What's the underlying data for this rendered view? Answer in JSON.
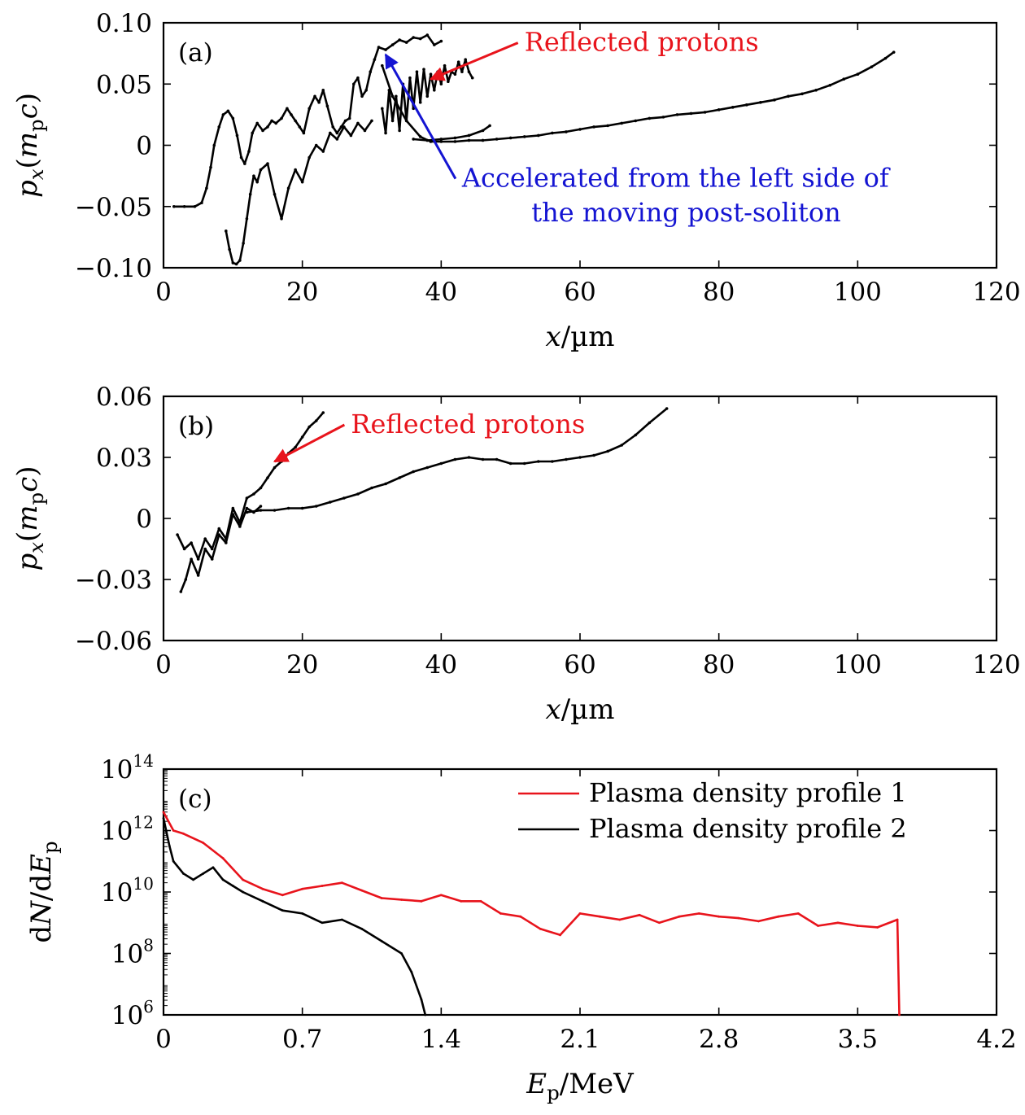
{
  "chart_data": [
    {
      "panel": "(a)",
      "type": "scatter",
      "title": "",
      "xlabel": "x/µm",
      "ylabel": "p_x(m_p c)",
      "xlim": [
        0,
        120
      ],
      "ylim": [
        -0.1,
        0.1
      ],
      "xticks": [
        0,
        20,
        40,
        60,
        80,
        100,
        120
      ],
      "xtick_labels": [
        "0",
        "20",
        "40",
        "60",
        "80",
        "100",
        "120"
      ],
      "yticks": [
        -0.1,
        -0.05,
        0,
        0.05,
        0.1
      ],
      "ytick_labels": [
        "−0.10",
        "−0.05",
        "0",
        "0.05",
        "0.10"
      ],
      "grid": false,
      "series": [
        {
          "color": "#000000",
          "x": [
            1.5,
            3,
            4.5,
            5.5,
            6.2,
            6.8,
            7.3,
            8,
            8.6,
            9.3,
            10,
            10.6,
            11.2,
            11.7,
            12.3,
            12.8,
            13.5,
            14.3,
            15,
            15.6,
            16.2,
            17,
            17.8,
            18.4,
            19,
            19.6,
            20.2,
            21,
            21.8,
            22.4,
            23,
            23.6,
            24.4,
            25,
            25.6,
            26.2,
            26.8,
            27.4,
            28,
            28.6,
            29.2,
            29.8,
            30.4,
            31,
            32,
            33,
            34,
            35,
            36,
            37,
            38,
            39,
            40
          ],
          "y": [
            -0.05,
            -0.05,
            -0.05,
            -0.047,
            -0.035,
            -0.018,
            0,
            0.015,
            0.025,
            0.028,
            0.022,
            0.008,
            -0.01,
            -0.015,
            -0.005,
            0.01,
            0.018,
            0.012,
            0.015,
            0.02,
            0.018,
            0.022,
            0.03,
            0.025,
            0.02,
            0.015,
            0.01,
            0.03,
            0.04,
            0.035,
            0.045,
            0.032,
            0.015,
            0.01,
            0.015,
            0.02,
            0.022,
            0.05,
            0.055,
            0.04,
            0.045,
            0.06,
            0.07,
            0.08,
            0.078,
            0.082,
            0.086,
            0.084,
            0.088,
            0.087,
            0.09,
            0.082,
            0.085
          ]
        },
        {
          "color": "#000000",
          "x": [
            31.5,
            33,
            35,
            37,
            38.5,
            40,
            42,
            44,
            46,
            48,
            50,
            52,
            54,
            56,
            58,
            60,
            62,
            64,
            66,
            68,
            70,
            72,
            74,
            76,
            78,
            80,
            82,
            84,
            86,
            88,
            90,
            92,
            94,
            96,
            98,
            100,
            102,
            104,
            105.2
          ],
          "y": [
            0.065,
            0.04,
            0.02,
            0.007,
            0.003,
            0.003,
            0.003,
            0.004,
            0.004,
            0.005,
            0.006,
            0.007,
            0.008,
            0.01,
            0.011,
            0.013,
            0.015,
            0.016,
            0.018,
            0.02,
            0.022,
            0.023,
            0.025,
            0.026,
            0.027,
            0.029,
            0.031,
            0.033,
            0.035,
            0.037,
            0.04,
            0.042,
            0.045,
            0.049,
            0.054,
            0.058,
            0.064,
            0.071,
            0.076
          ]
        },
        {
          "color": "#000000",
          "x": [
            9,
            9.5,
            10,
            10.5,
            11,
            11.5,
            12,
            12.5,
            13,
            13.5,
            14,
            15,
            16,
            17,
            18,
            19,
            20,
            21,
            22,
            23,
            24,
            25,
            26,
            27,
            28,
            29,
            30
          ],
          "y": [
            -0.07,
            -0.085,
            -0.096,
            -0.097,
            -0.094,
            -0.08,
            -0.06,
            -0.04,
            -0.025,
            -0.03,
            -0.02,
            -0.015,
            -0.04,
            -0.06,
            -0.035,
            -0.02,
            -0.03,
            -0.01,
            0,
            -0.005,
            0.01,
            0.005,
            0.015,
            0.008,
            0.018,
            0.012,
            0.02
          ]
        },
        {
          "color": "#000000",
          "x": [
            31.5,
            32,
            32.5,
            33,
            33.5,
            34,
            34.5,
            35,
            35.5,
            36,
            36.5,
            37,
            37.5,
            38,
            38.5,
            39,
            39.5,
            40,
            40.5,
            41,
            41.5,
            42,
            42.5,
            43,
            43.5,
            44,
            44.5
          ],
          "y": [
            0.03,
            0.01,
            0.045,
            0.02,
            0.04,
            0.012,
            0.05,
            0.02,
            0.055,
            0.03,
            0.06,
            0.035,
            0.062,
            0.04,
            0.058,
            0.045,
            0.06,
            0.05,
            0.065,
            0.052,
            0.06,
            0.058,
            0.068,
            0.06,
            0.07,
            0.06,
            0.055
          ]
        },
        {
          "color": "#000000",
          "x": [
            36,
            38,
            40,
            42,
            44,
            46,
            47
          ],
          "y": [
            0.005,
            0.004,
            0.005,
            0.006,
            0.008,
            0.012,
            0.016
          ]
        }
      ],
      "annotations": [
        {
          "text": "Reflected protons",
          "color": "#e8141c",
          "x_text": 52,
          "y_text": 0.077,
          "arrow_to": [
            38.5,
            0.054
          ]
        },
        {
          "text": "Accelerated from the left side of",
          "color": "#1414d2",
          "x_text": 43,
          "y_text": -0.034,
          "arrow_to": [
            32,
            0.074
          ]
        },
        {
          "text": "the moving post-soliton",
          "color": "#1414d2",
          "x_text": 53,
          "y_text": -0.062
        }
      ]
    },
    {
      "panel": "(b)",
      "type": "scatter",
      "title": "",
      "xlabel": "x/µm",
      "ylabel": "p_x(m_p c)",
      "xlim": [
        0,
        120
      ],
      "ylim": [
        -0.06,
        0.06
      ],
      "xticks": [
        0,
        20,
        40,
        60,
        80,
        100,
        120
      ],
      "xtick_labels": [
        "0",
        "20",
        "40",
        "60",
        "80",
        "100",
        "120"
      ],
      "yticks": [
        -0.06,
        -0.03,
        0,
        0.03,
        0.06
      ],
      "ytick_labels": [
        "−0.06",
        "−0.03",
        "0",
        "0.03",
        "0.06"
      ],
      "grid": false,
      "series": [
        {
          "color": "#000000",
          "x": [
            2,
            3,
            4,
            5,
            6,
            7,
            8,
            9,
            10,
            11,
            12,
            13,
            14,
            15,
            16,
            17,
            18,
            19,
            20,
            21,
            22,
            23
          ],
          "y": [
            -0.008,
            -0.015,
            -0.012,
            -0.02,
            -0.01,
            -0.015,
            -0.005,
            -0.01,
            0.005,
            -0.002,
            0.01,
            0.012,
            0.015,
            0.02,
            0.025,
            0.028,
            0.032,
            0.035,
            0.04,
            0.045,
            0.048,
            0.052
          ]
        },
        {
          "color": "#000000",
          "x": [
            2.5,
            3.2,
            4,
            5,
            6,
            7,
            8,
            9,
            10,
            11,
            12,
            13,
            14
          ],
          "y": [
            -0.036,
            -0.03,
            -0.02,
            -0.028,
            -0.015,
            -0.02,
            -0.008,
            -0.012,
            0.002,
            -0.004,
            0.005,
            0.003,
            0.006
          ]
        },
        {
          "color": "#000000",
          "x": [
            12,
            14,
            16,
            18,
            20,
            22,
            24,
            26,
            28,
            30,
            32,
            34,
            36,
            38,
            40,
            42,
            44,
            46,
            48,
            50,
            52,
            54,
            56,
            58,
            60,
            62,
            64,
            66,
            68,
            70,
            72.5
          ],
          "y": [
            0.003,
            0.004,
            0.004,
            0.005,
            0.005,
            0.006,
            0.008,
            0.01,
            0.012,
            0.015,
            0.017,
            0.02,
            0.023,
            0.025,
            0.027,
            0.029,
            0.03,
            0.029,
            0.029,
            0.027,
            0.027,
            0.028,
            0.028,
            0.029,
            0.03,
            0.031,
            0.033,
            0.036,
            0.041,
            0.047,
            0.054
          ]
        }
      ],
      "annotations": [
        {
          "text": "Reflected protons",
          "color": "#e8141c",
          "x_text": 27,
          "y_text": 0.042,
          "arrow_to": [
            16,
            0.028
          ]
        }
      ]
    },
    {
      "panel": "(c)",
      "type": "line",
      "title": "",
      "xlabel": "E_p/MeV",
      "ylabel": "dN/dE_p",
      "xlim": [
        0,
        4.2
      ],
      "ylim": [
        6,
        14
      ],
      "yscale": "log",
      "xticks": [
        0,
        0.7,
        1.4,
        2.1,
        2.8,
        3.5,
        4.2
      ],
      "xtick_labels": [
        "0",
        "0.7",
        "1.4",
        "2.1",
        "2.8",
        "3.5",
        "4.2"
      ],
      "yticks_exponent": [
        6,
        8,
        10,
        12,
        14
      ],
      "ytick_base": "10",
      "legend_position": "top-right",
      "grid": false,
      "series": [
        {
          "name": "Plasma density profile 1",
          "color": "#e8141c",
          "x": [
            0,
            0.05,
            0.1,
            0.2,
            0.3,
            0.4,
            0.5,
            0.6,
            0.7,
            0.8,
            0.9,
            1.0,
            1.1,
            1.2,
            1.3,
            1.4,
            1.5,
            1.6,
            1.7,
            1.8,
            1.9,
            2.0,
            2.1,
            2.2,
            2.3,
            2.4,
            2.5,
            2.6,
            2.7,
            2.8,
            2.9,
            3.0,
            3.1,
            3.2,
            3.3,
            3.4,
            3.5,
            3.6,
            3.7,
            3.71
          ],
          "log10_y": [
            12.6,
            12.0,
            11.9,
            11.6,
            11.1,
            10.4,
            10.1,
            9.9,
            10.1,
            10.2,
            10.3,
            10.05,
            9.8,
            9.75,
            9.7,
            9.9,
            9.7,
            9.7,
            9.3,
            9.2,
            8.8,
            8.6,
            9.3,
            9.2,
            9.1,
            9.25,
            9.0,
            9.2,
            9.3,
            9.2,
            9.15,
            9.05,
            9.2,
            9.3,
            8.9,
            9.0,
            8.9,
            8.85,
            9.1,
            6.0
          ]
        },
        {
          "name": "Plasma density profile 2",
          "color": "#000000",
          "x": [
            0,
            0.03,
            0.05,
            0.1,
            0.15,
            0.2,
            0.25,
            0.3,
            0.35,
            0.4,
            0.5,
            0.6,
            0.7,
            0.8,
            0.9,
            1.0,
            1.1,
            1.2,
            1.25,
            1.3,
            1.32
          ],
          "log10_y": [
            12.4,
            11.5,
            11.0,
            10.6,
            10.4,
            10.6,
            10.8,
            10.4,
            10.2,
            10.0,
            9.7,
            9.4,
            9.3,
            9.0,
            9.1,
            8.8,
            8.4,
            8.0,
            7.4,
            6.5,
            6.0
          ]
        }
      ]
    }
  ]
}
